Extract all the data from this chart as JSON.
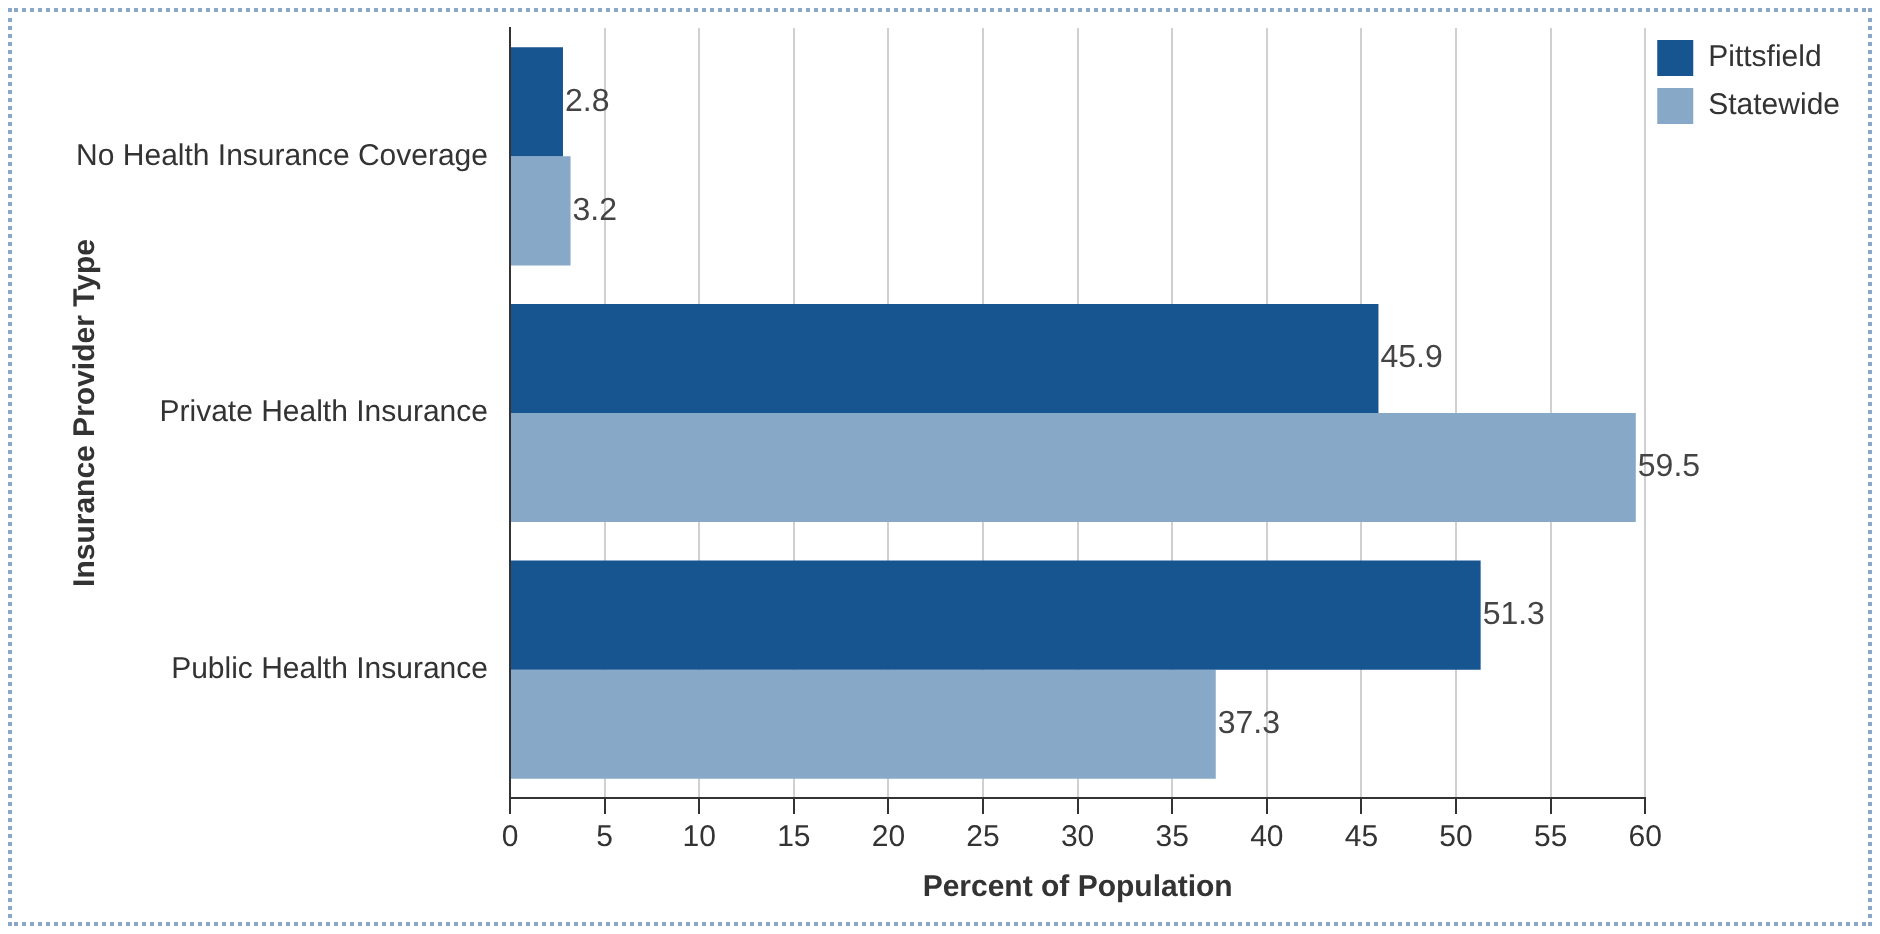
{
  "chart_data": {
    "type": "bar",
    "orientation": "horizontal",
    "xlabel": "Percent of Population",
    "ylabel": "Insurance Provider Type",
    "categories": [
      "No Health Insurance Coverage",
      "Private Health Insurance",
      "Public Health Insurance"
    ],
    "series": [
      {
        "name": "Pittsfield",
        "color": "#175591",
        "values": [
          2.8,
          45.9,
          51.3
        ]
      },
      {
        "name": "Statewide",
        "color": "#87a8c6",
        "values": [
          3.2,
          59.5,
          37.3
        ]
      }
    ],
    "xlim": [
      0,
      60
    ],
    "xticks": [
      0,
      5,
      10,
      15,
      20,
      25,
      30,
      35,
      40,
      45,
      50,
      55,
      60
    ],
    "grid": "x",
    "legend": "top right",
    "data_labels": true
  }
}
